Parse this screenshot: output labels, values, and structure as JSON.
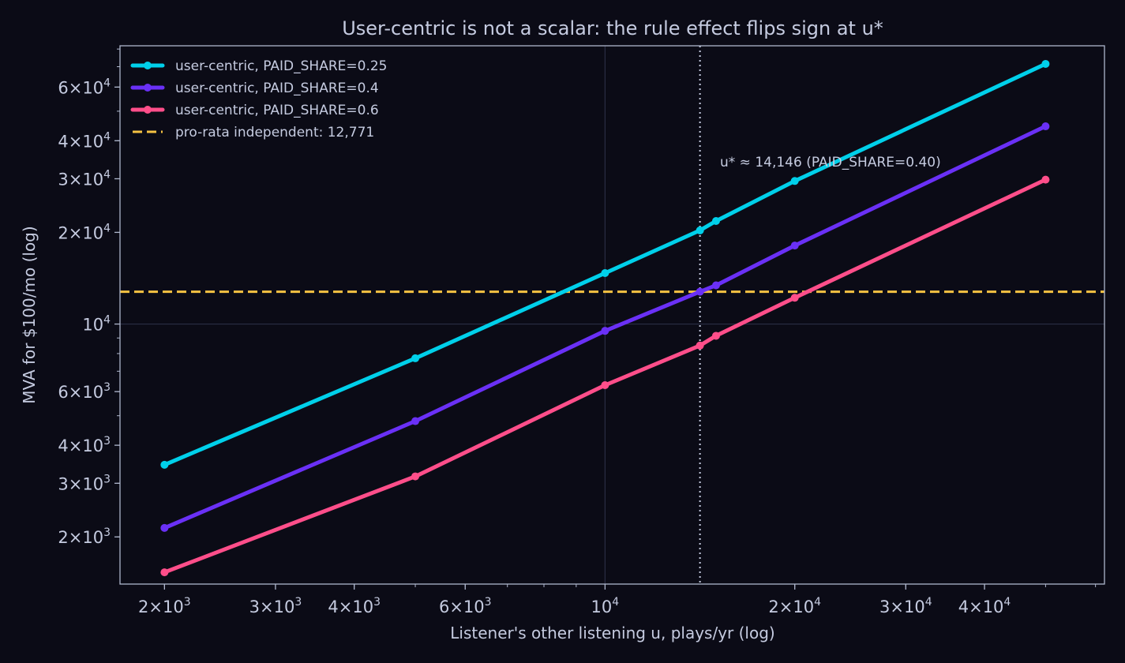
{
  "chart_data": {
    "type": "line",
    "title": "User-centric is not a scalar: the rule effect flips sign at u*",
    "xlabel": "Listener's other listening u, plays/yr (log)",
    "ylabel": "MVA for $100/mo (log)",
    "xscale": "log",
    "yscale": "log",
    "xlim": [
      1700,
      62000
    ],
    "ylim": [
      1400,
      82000
    ],
    "grid": true,
    "legend_position": "top-left",
    "x": [
      2000,
      5000,
      10000,
      14146,
      15000,
      20000,
      50000
    ],
    "series": [
      {
        "name": "user-centric, PAID_SHARE=0.25",
        "color": "#00d0ea",
        "values": [
          3450,
          7720,
          14700,
          20300,
          21800,
          29500,
          71500
        ]
      },
      {
        "name": "user-centric, PAID_SHARE=0.4",
        "color": "#6a30f6",
        "values": [
          2140,
          4800,
          9500,
          12771,
          13400,
          18100,
          44600
        ]
      },
      {
        "name": "user-centric, PAID_SHARE=0.6",
        "color": "#ff4e8a",
        "values": [
          1530,
          3160,
          6300,
          8500,
          9150,
          12200,
          29800
        ]
      }
    ],
    "reference_line": {
      "name": "pro-rata independent: 12,771",
      "value": 12771,
      "color": "#f5c242",
      "style": "dashed"
    },
    "vertical_marker": {
      "value": 14146,
      "label": "u* ≈ 14,146 (PAID_SHARE=0.40)",
      "style": "dotted",
      "color": "#c5cbe0"
    },
    "x_ticks": [
      {
        "value": 2000,
        "mant": "2",
        "exp": "3"
      },
      {
        "value": 3000,
        "mant": "3",
        "exp": "3"
      },
      {
        "value": 4000,
        "mant": "4",
        "exp": "3"
      },
      {
        "value": 6000,
        "mant": "6",
        "exp": "3"
      },
      {
        "value": 10000,
        "mant": "",
        "exp": "4"
      },
      {
        "value": 20000,
        "mant": "2",
        "exp": "4"
      },
      {
        "value": 30000,
        "mant": "3",
        "exp": "4"
      },
      {
        "value": 40000,
        "mant": "4",
        "exp": "4"
      }
    ],
    "y_ticks": [
      {
        "value": 2000,
        "mant": "2",
        "exp": "3"
      },
      {
        "value": 3000,
        "mant": "3",
        "exp": "3"
      },
      {
        "value": 4000,
        "mant": "4",
        "exp": "3"
      },
      {
        "value": 6000,
        "mant": "6",
        "exp": "3"
      },
      {
        "value": 10000,
        "mant": "",
        "exp": "4"
      },
      {
        "value": 20000,
        "mant": "2",
        "exp": "4"
      },
      {
        "value": 30000,
        "mant": "3",
        "exp": "4"
      },
      {
        "value": 40000,
        "mant": "4",
        "exp": "4"
      },
      {
        "value": 60000,
        "mant": "6",
        "exp": "4"
      }
    ]
  }
}
